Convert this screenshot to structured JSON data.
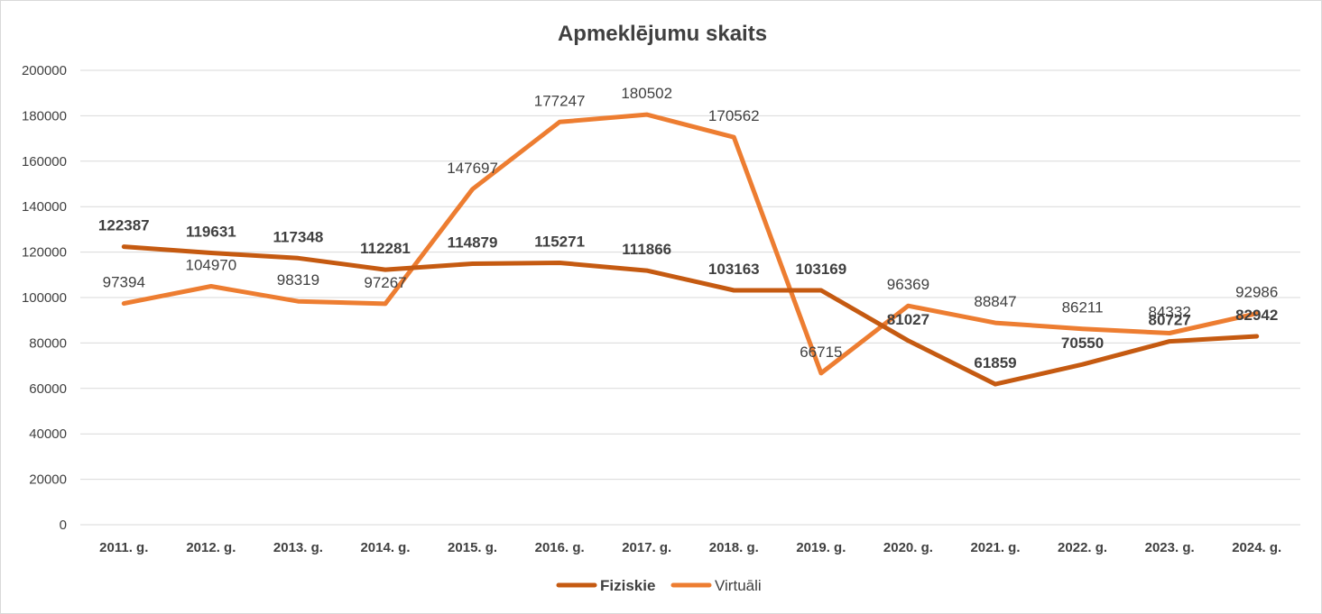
{
  "chart_data": {
    "type": "line",
    "title": "Apmeklējumu skaits",
    "categories": [
      "2011. g.",
      "2012. g.",
      "2013. g.",
      "2014. g.",
      "2015. g.",
      "2016. g.",
      "2017. g.",
      "2018. g.",
      "2019. g.",
      "2020. g.",
      "2021. g.",
      "2022. g.",
      "2023. g.",
      "2024. g."
    ],
    "ylim": [
      0,
      200000
    ],
    "yticks": [
      "0",
      "20000",
      "40000",
      "60000",
      "80000",
      "100000",
      "120000",
      "140000",
      "160000",
      "180000",
      "200000"
    ],
    "grid": true,
    "legend_position": "bottom",
    "series": [
      {
        "name": "Fiziskie",
        "color": "#C55A11",
        "values": [
          122387,
          119631,
          117348,
          112281,
          114879,
          115271,
          111866,
          103163,
          103169,
          81027,
          61859,
          70550,
          80727,
          82942
        ]
      },
      {
        "name": "Virtuāli",
        "color": "#ED7D31",
        "values": [
          97394,
          104970,
          98319,
          97267,
          147697,
          177247,
          180502,
          170562,
          66715,
          96369,
          88847,
          86211,
          84332,
          92986
        ]
      }
    ]
  }
}
